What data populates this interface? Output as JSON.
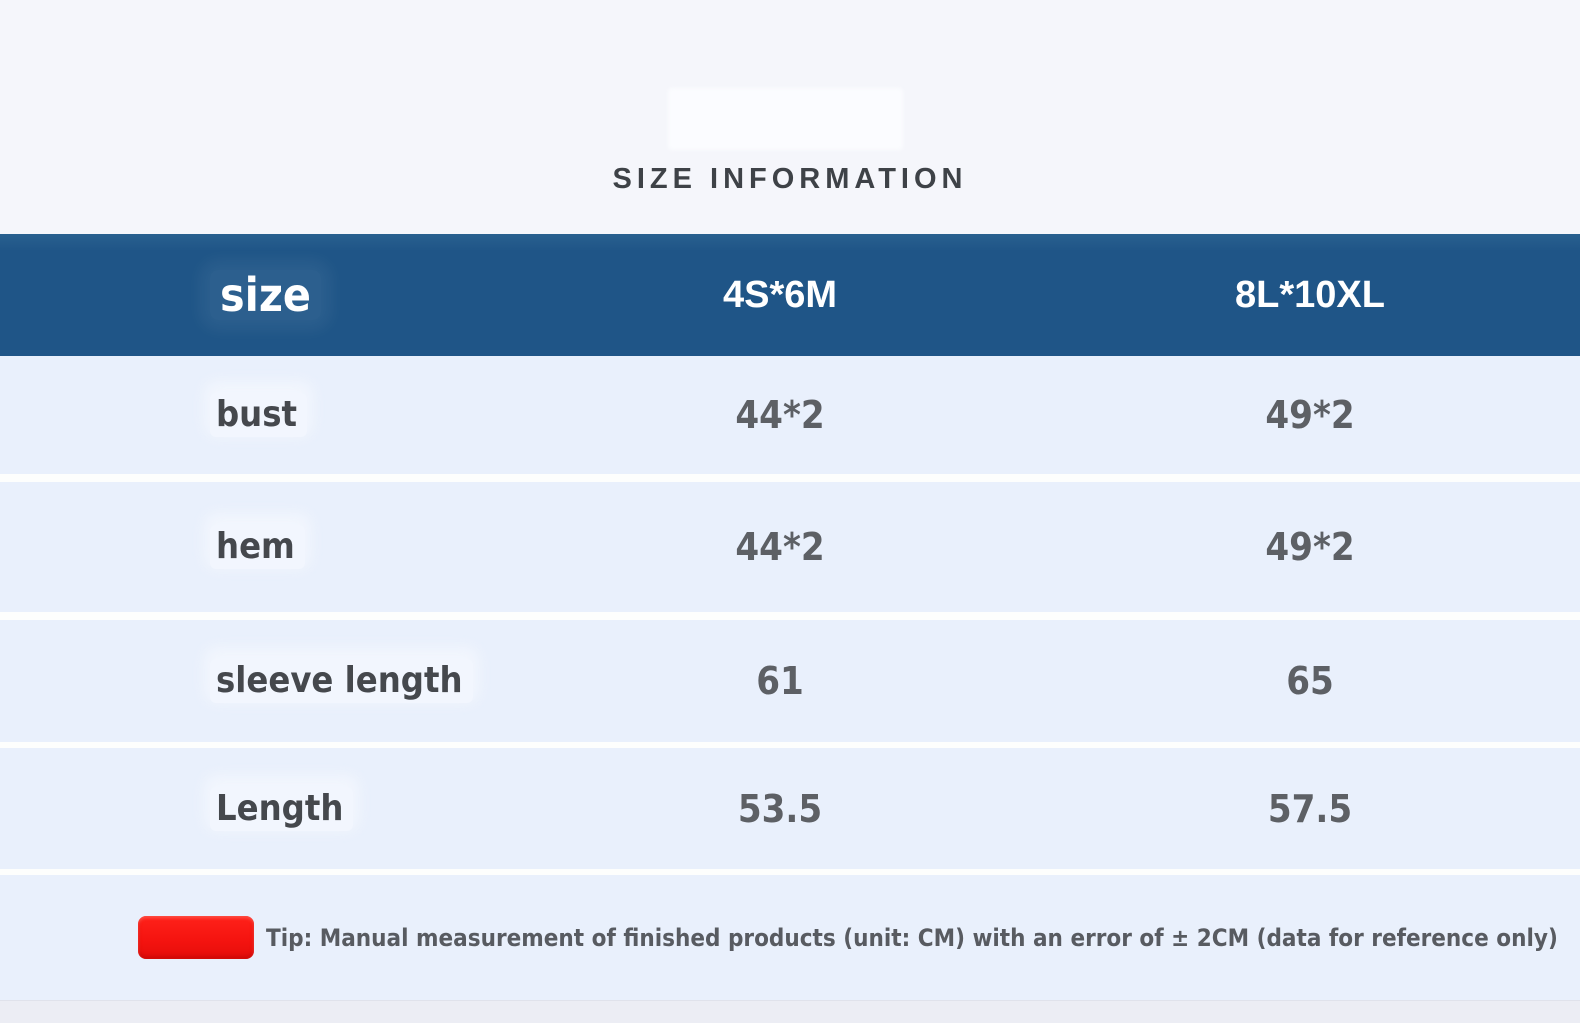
{
  "page": {
    "title": "SIZE INFORMATION"
  },
  "table": {
    "header": {
      "size_label": "size",
      "col_small": "4S*6M",
      "col_large": "8L*10XL"
    },
    "rows": [
      {
        "label": "bust",
        "small": "44*2",
        "large": "49*2"
      },
      {
        "label": "hem",
        "small": "44*2",
        "large": "49*2"
      },
      {
        "label": "sleeve length",
        "small": "61",
        "large": "65"
      },
      {
        "label": "Length",
        "small": "53.5",
        "large": "57.5"
      }
    ]
  },
  "tip": {
    "text": "Tip: Manual measurement of finished products (unit: CM) with an error of ± 2CM (data for reference only)"
  },
  "colors": {
    "header_bg": "#1f5587",
    "row_bg": "#e9f0fc",
    "page_bg": "#f5f6fb",
    "separator": "#fdfefd",
    "tip_marker_red": "#f51410",
    "header_text": "#ffffff",
    "label_text": "#45484d",
    "value_text": "#5d6065"
  }
}
